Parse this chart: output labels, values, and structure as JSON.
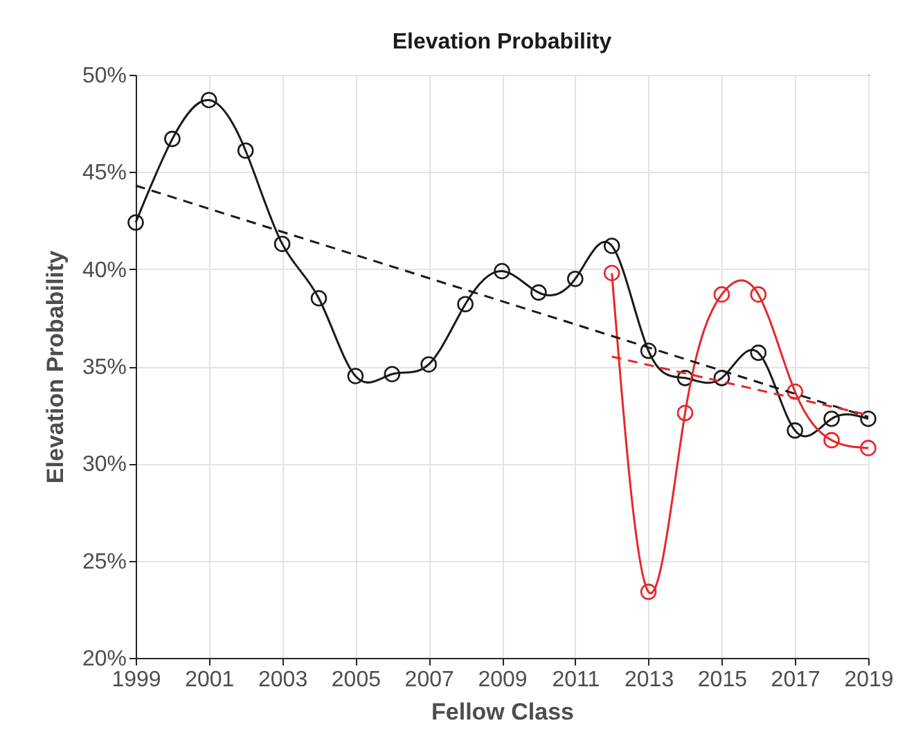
{
  "chart_data": {
    "type": "line",
    "title": "Elevation Probability",
    "xlabel": "Fellow Class",
    "ylabel": "Elevation Probability",
    "x": [
      1999,
      2000,
      2001,
      2002,
      2003,
      2004,
      2005,
      2006,
      2007,
      2008,
      2009,
      2010,
      2011,
      2012,
      2013,
      2014,
      2015,
      2016,
      2017,
      2018,
      2019
    ],
    "xlim": [
      1999,
      2019
    ],
    "xticks": [
      1999,
      2001,
      2003,
      2005,
      2007,
      2009,
      2011,
      2013,
      2015,
      2017,
      2019
    ],
    "ylim": [
      20,
      50
    ],
    "yticks": [
      {
        "value": 20,
        "label": "20%"
      },
      {
        "value": 25,
        "label": "25%"
      },
      {
        "value": 30,
        "label": "30%"
      },
      {
        "value": 35,
        "label": "35%"
      },
      {
        "value": 40,
        "label": "40%"
      },
      {
        "value": 45,
        "label": "45%"
      },
      {
        "value": 50,
        "label": "50%"
      }
    ],
    "grid": true,
    "marker": "circle",
    "line_style": "solid",
    "series": [
      {
        "color": "#1a1a1a",
        "values": [
          42.4,
          46.7,
          48.7,
          46.1,
          41.3,
          38.5,
          34.5,
          34.6,
          35.1,
          38.2,
          39.9,
          38.8,
          39.5,
          41.2,
          35.8,
          34.4,
          34.4,
          35.7,
          31.7,
          32.3,
          32.3
        ]
      },
      {
        "color": "#e8262a",
        "x": [
          2012,
          2013,
          2014,
          2015,
          2016,
          2017,
          2018,
          2019
        ],
        "values": [
          39.8,
          23.4,
          32.6,
          38.7,
          38.7,
          33.7,
          31.2,
          30.8
        ]
      },
      {
        "color": "#1a1a1a",
        "x": [
          1999,
          2019
        ],
        "values": [
          44.3,
          32.4
        ],
        "marker": "none",
        "line_style": "dashed"
      },
      {
        "color": "#e8262a",
        "x": [
          2012,
          2019
        ],
        "values": [
          35.5,
          32.5
        ],
        "marker": "none",
        "line_style": "dashed"
      }
    ]
  }
}
